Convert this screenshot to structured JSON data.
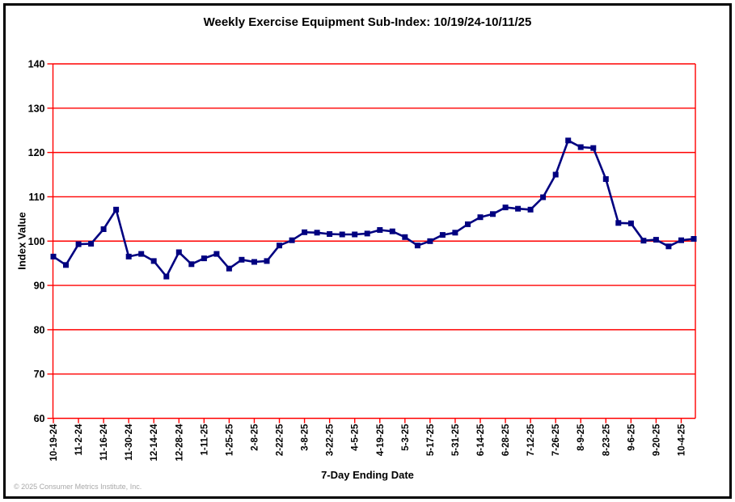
{
  "page": {
    "copyright": "© 2025 Consumer Metrics Institute, Inc."
  },
  "chart_data": {
    "type": "line",
    "title": "Weekly Exercise Equipment Sub-Index: 10/19/24-10/11/25",
    "xlabel": "7-Day Ending Date",
    "ylabel": "Index Value",
    "ylim": [
      60,
      140
    ],
    "y_ticks": [
      60,
      70,
      80,
      90,
      100,
      110,
      120,
      130,
      140
    ],
    "grid": "horizontal-only",
    "legend_position": "none",
    "x_tick_every": 2,
    "x_tick_labels": [
      "10-19-24",
      "11-2-24",
      "11-16-24",
      "11-30-24",
      "12-14-24",
      "12-28-24",
      "1-11-25",
      "1-25-25",
      "2-8-25",
      "2-22-25",
      "3-8-25",
      "3-22-25",
      "4-5-25",
      "4-19-25",
      "5-3-25",
      "5-17-25",
      "5-31-25",
      "6-14-25",
      "6-28-25",
      "7-12-25",
      "7-26-25",
      "8-9-25",
      "8-23-25",
      "9-6-25",
      "9-20-25",
      "10-4-25"
    ],
    "values": [
      96.5,
      94.6,
      99.3,
      99.4,
      102.7,
      107.1,
      96.5,
      97.1,
      95.5,
      92.0,
      97.5,
      94.8,
      96.1,
      97.1,
      93.8,
      95.8,
      95.3,
      95.5,
      99.0,
      100.2,
      102.0,
      101.9,
      101.6,
      101.5,
      101.5,
      101.7,
      102.5,
      102.2,
      100.9,
      99.0,
      100.0,
      101.4,
      101.9,
      103.8,
      105.4,
      106.1,
      107.6,
      107.3,
      107.1,
      109.9,
      115.0,
      122.7,
      121.2,
      121.0,
      114.0,
      104.1,
      104.0,
      100.1,
      100.3,
      98.8,
      100.2,
      100.5
    ],
    "marker": "square",
    "colors": {
      "line": "#000080",
      "marker": "#000080",
      "grid": "#ff0000",
      "axis": "#ff0000",
      "text": "#000000",
      "copyright": "#a8a8a8",
      "background": "#ffffff",
      "frame": "#000000"
    }
  }
}
